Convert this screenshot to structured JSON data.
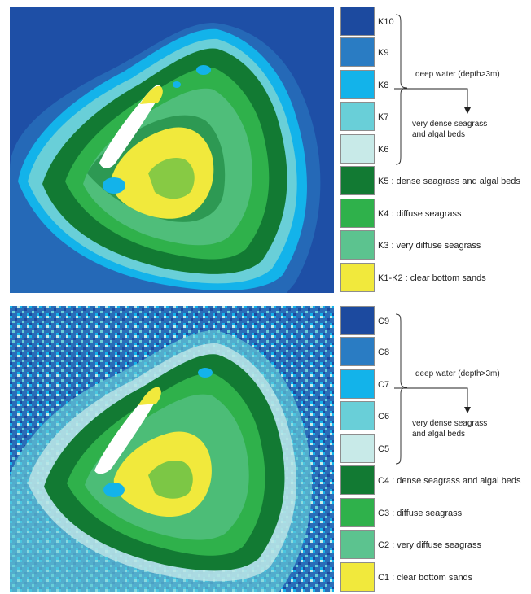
{
  "panels": [
    {
      "legend": [
        {
          "code": "K10",
          "text": "",
          "color": "#1c4a9f"
        },
        {
          "code": "K9",
          "text": "",
          "color": "#2a7cc3"
        },
        {
          "code": "K8",
          "text": "",
          "color": "#13b3ea"
        },
        {
          "code": "K7",
          "text": "",
          "color": "#69cfd8"
        },
        {
          "code": "K6",
          "text": "",
          "color": "#c8eae8"
        },
        {
          "code": "K5",
          "text": ": dense seagrass and algal beds",
          "color": "#127a33"
        },
        {
          "code": "K4",
          "text": ": diffuse seagrass",
          "color": "#2fb14b"
        },
        {
          "code": "K3",
          "text": ": very diffuse seagrass",
          "color": "#5cc38f"
        },
        {
          "code": "K1-K2",
          "text": ": clear bottom sands",
          "color": "#f1e93c"
        }
      ],
      "deep_water_label": "deep water (depth>3m)",
      "seagrass_note": [
        "very dense seagrass",
        "and algal beds"
      ]
    },
    {
      "legend": [
        {
          "code": "C9",
          "text": "",
          "color": "#1c4a9f"
        },
        {
          "code": "C8",
          "text": "",
          "color": "#2a7cc3"
        },
        {
          "code": "C7",
          "text": "",
          "color": "#13b3ea"
        },
        {
          "code": "C6",
          "text": "",
          "color": "#69cfd8"
        },
        {
          "code": "C5",
          "text": "",
          "color": "#c8eae8"
        },
        {
          "code": "C4",
          "text": ": dense seagrass  and algal beds",
          "color": "#127a33"
        },
        {
          "code": "C3",
          "text": ": diffuse seagrass",
          "color": "#2fb14b"
        },
        {
          "code": "C2",
          "text": ": very diffuse seagrass",
          "color": "#5cc38f"
        },
        {
          "code": "C1",
          "text": ": clear bottom sands",
          "color": "#f1e93c"
        }
      ],
      "deep_water_label": "deep water (depth>3m)",
      "seagrass_note": [
        "very dense seagrass",
        "and algal beds"
      ]
    }
  ]
}
